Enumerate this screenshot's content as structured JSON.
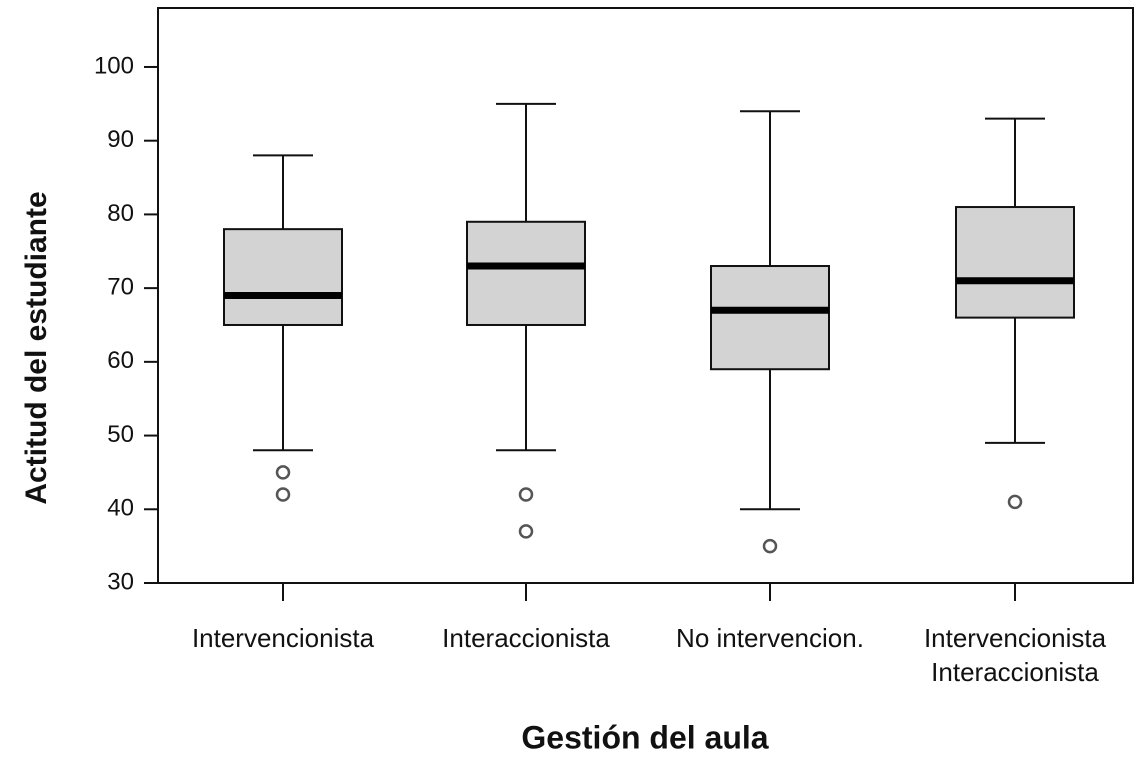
{
  "chart_data": {
    "type": "box",
    "x_label": "Gestión del aula",
    "y_label": "Actitud del estudiante",
    "categories": [
      "Intervencionista",
      "Interaccionista",
      "No intervencion.",
      "Intervencionista\nInteraccionista"
    ],
    "boxes": [
      {
        "whisker_high": 88,
        "q3": 78,
        "median": 69,
        "q1": 65,
        "whisker_low": 48,
        "outliers": [
          45,
          42
        ]
      },
      {
        "whisker_high": 95,
        "q3": 79,
        "median": 73,
        "q1": 65,
        "whisker_low": 48,
        "outliers": [
          42,
          37
        ]
      },
      {
        "whisker_high": 94,
        "q3": 73,
        "median": 67,
        "q1": 59,
        "whisker_low": 40,
        "outliers": [
          35
        ]
      },
      {
        "whisker_high": 93,
        "q3": 81,
        "median": 71,
        "q1": 66,
        "whisker_low": 49,
        "outliers": [
          41
        ]
      }
    ],
    "color": "#d3d3d3",
    "ylim": [
      30,
      108
    ],
    "yticks": [
      30,
      40,
      50,
      60,
      70,
      80,
      90,
      100
    ]
  }
}
